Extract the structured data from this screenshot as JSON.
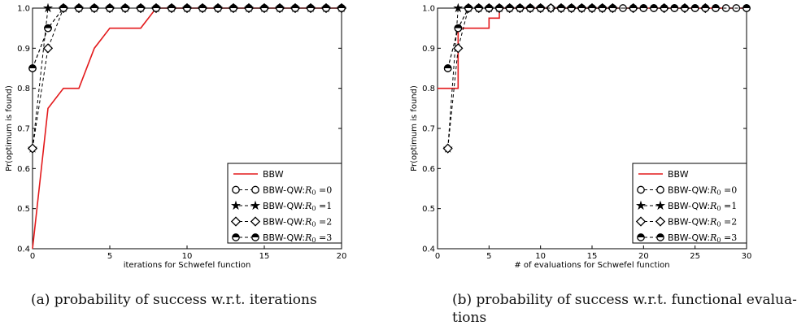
{
  "captions": {
    "a": "(a) probability of success w.r.t. iterations",
    "b": "(b) probability of success w.r.t.  functional evalua-tions"
  },
  "chart_data": [
    {
      "type": "line",
      "title": "",
      "xlabel": "iterations for Schwefel function",
      "ylabel": "Pr(optimum is found)",
      "xlim": [
        0,
        20
      ],
      "ylim": [
        0.4,
        1.0
      ],
      "xticks": [
        0,
        5,
        10,
        15,
        20
      ],
      "yticks": [
        0.4,
        0.5,
        0.6,
        0.7,
        0.8,
        0.9,
        1.0
      ],
      "grid": false,
      "legend_position": "bottom-right",
      "series": [
        {
          "name": "BBW",
          "style": "solid",
          "color": "#e31a1c",
          "marker": "none",
          "step": false,
          "x": [
            0,
            1,
            2,
            3,
            4,
            5,
            6,
            7,
            8,
            9,
            10,
            11,
            12,
            13,
            14,
            15,
            16,
            17,
            18,
            19,
            20
          ],
          "y": [
            0.4,
            0.75,
            0.8,
            0.8,
            0.9,
            0.95,
            0.95,
            0.95,
            1.0,
            1.0,
            1.0,
            1.0,
            1.0,
            1.0,
            1.0,
            1.0,
            1.0,
            1.0,
            1.0,
            1.0,
            1.0
          ]
        },
        {
          "name": "BBW-QW:R0=0",
          "style": "dashed",
          "color": "#000000",
          "marker": "circle",
          "x": [
            0,
            1,
            2,
            3,
            4,
            5,
            6,
            7,
            8,
            9,
            10,
            11,
            12,
            13,
            14,
            15,
            16,
            17,
            18,
            19,
            20
          ],
          "y": [
            0.85,
            0.95,
            1.0,
            1.0,
            1.0,
            1.0,
            1.0,
            1.0,
            1.0,
            1.0,
            1.0,
            1.0,
            1.0,
            1.0,
            1.0,
            1.0,
            1.0,
            1.0,
            1.0,
            1.0,
            1.0
          ]
        },
        {
          "name": "BBW-QW:R0=1",
          "style": "dashed",
          "color": "#000000",
          "marker": "star",
          "x": [
            0,
            1,
            2,
            3,
            4,
            5,
            6,
            7,
            8,
            9,
            10,
            11,
            12,
            13,
            14,
            15,
            16,
            17,
            18,
            19,
            20
          ],
          "y": [
            0.65,
            1.0,
            1.0,
            1.0,
            1.0,
            1.0,
            1.0,
            1.0,
            1.0,
            1.0,
            1.0,
            1.0,
            1.0,
            1.0,
            1.0,
            1.0,
            1.0,
            1.0,
            1.0,
            1.0,
            1.0
          ]
        },
        {
          "name": "BBW-QW:R0=2",
          "style": "dashed",
          "color": "#000000",
          "marker": "diamond",
          "x": [
            0,
            1,
            2,
            3,
            4,
            5,
            6,
            7,
            8,
            9,
            10,
            11,
            12,
            13,
            14,
            15,
            16,
            17,
            18,
            19,
            20
          ],
          "y": [
            0.65,
            0.9,
            1.0,
            1.0,
            1.0,
            1.0,
            1.0,
            1.0,
            1.0,
            1.0,
            1.0,
            1.0,
            1.0,
            1.0,
            1.0,
            1.0,
            1.0,
            1.0,
            1.0,
            1.0,
            1.0
          ]
        },
        {
          "name": "BBW-QW:R0=3",
          "style": "dashed",
          "color": "#000000",
          "marker": "circle-half",
          "x": [
            0,
            1,
            2,
            3,
            4,
            5,
            6,
            7,
            8,
            9,
            10,
            11,
            12,
            13,
            14,
            15,
            16,
            17,
            18,
            19,
            20
          ],
          "y": [
            0.85,
            0.95,
            1.0,
            1.0,
            1.0,
            1.0,
            1.0,
            1.0,
            1.0,
            1.0,
            1.0,
            1.0,
            1.0,
            1.0,
            1.0,
            1.0,
            1.0,
            1.0,
            1.0,
            1.0,
            1.0
          ]
        }
      ]
    },
    {
      "type": "line",
      "title": "",
      "xlabel": "# of evaluations for Schwefel function",
      "ylabel": "Pr(optimum is found)",
      "xlim": [
        0,
        30
      ],
      "ylim": [
        0.4,
        1.0
      ],
      "xticks": [
        0,
        5,
        10,
        15,
        20,
        25,
        30
      ],
      "yticks": [
        0.4,
        0.5,
        0.6,
        0.7,
        0.8,
        0.9,
        1.0
      ],
      "grid": false,
      "legend_position": "bottom-right",
      "series": [
        {
          "name": "BBW",
          "style": "solid",
          "color": "#e31a1c",
          "marker": "none",
          "step": true,
          "x": [
            0,
            1,
            2,
            3,
            4,
            5,
            6,
            30
          ],
          "y": [
            0.8,
            0.8,
            0.95,
            0.95,
            0.95,
            0.975,
            1.0,
            1.0
          ]
        },
        {
          "name": "BBW-QW:R0=0",
          "style": "dashed",
          "color": "#000000",
          "marker": "circle",
          "x": [
            1,
            2,
            3,
            4,
            5,
            6,
            7,
            8,
            9,
            10,
            11,
            12,
            13,
            14,
            15,
            16,
            17,
            18,
            19,
            20,
            21,
            22,
            23,
            24,
            25,
            26,
            27,
            28,
            29,
            30
          ],
          "y": [
            0.85,
            0.95,
            1.0,
            1.0,
            1.0,
            1.0,
            1.0,
            1.0,
            1.0,
            1.0,
            1.0,
            1.0,
            1.0,
            1.0,
            1.0,
            1.0,
            1.0,
            1.0,
            1.0,
            1.0,
            1.0,
            1.0,
            1.0,
            1.0,
            1.0,
            1.0,
            1.0,
            1.0,
            1.0,
            1.0
          ]
        },
        {
          "name": "BBW-QW:R0=1",
          "style": "dashed",
          "color": "#000000",
          "marker": "star",
          "x": [
            1,
            2,
            3,
            4,
            5,
            6,
            7,
            8,
            9,
            10,
            11,
            12,
            13,
            14,
            15,
            16,
            17
          ],
          "y": [
            0.65,
            1.0,
            1.0,
            1.0,
            1.0,
            1.0,
            1.0,
            1.0,
            1.0,
            1.0,
            1.0,
            1.0,
            1.0,
            1.0,
            1.0,
            1.0,
            1.0
          ]
        },
        {
          "name": "BBW-QW:R0=2",
          "style": "dashed",
          "color": "#000000",
          "marker": "diamond",
          "x": [
            1,
            2,
            3,
            4,
            5,
            6,
            7,
            8,
            9,
            10,
            11,
            12,
            13,
            14,
            15,
            16,
            17,
            19,
            22,
            24,
            26
          ],
          "y": [
            0.65,
            0.9,
            1.0,
            1.0,
            1.0,
            1.0,
            1.0,
            1.0,
            1.0,
            1.0,
            1.0,
            1.0,
            1.0,
            1.0,
            1.0,
            1.0,
            1.0,
            1.0,
            1.0,
            1.0,
            1.0
          ]
        },
        {
          "name": "BBW-QW:R0=3",
          "style": "dashed",
          "color": "#000000",
          "marker": "circle-half",
          "x": [
            1,
            2,
            3,
            4,
            5,
            6,
            7,
            8,
            9,
            10,
            12,
            13,
            14,
            15,
            16,
            17,
            19,
            20,
            21,
            22,
            23,
            24,
            25,
            26,
            27,
            30
          ],
          "y": [
            0.85,
            0.95,
            1.0,
            1.0,
            1.0,
            1.0,
            1.0,
            1.0,
            1.0,
            1.0,
            1.0,
            1.0,
            1.0,
            1.0,
            1.0,
            1.0,
            1.0,
            1.0,
            1.0,
            1.0,
            1.0,
            1.0,
            1.0,
            1.0,
            1.0,
            1.0
          ]
        }
      ]
    }
  ]
}
